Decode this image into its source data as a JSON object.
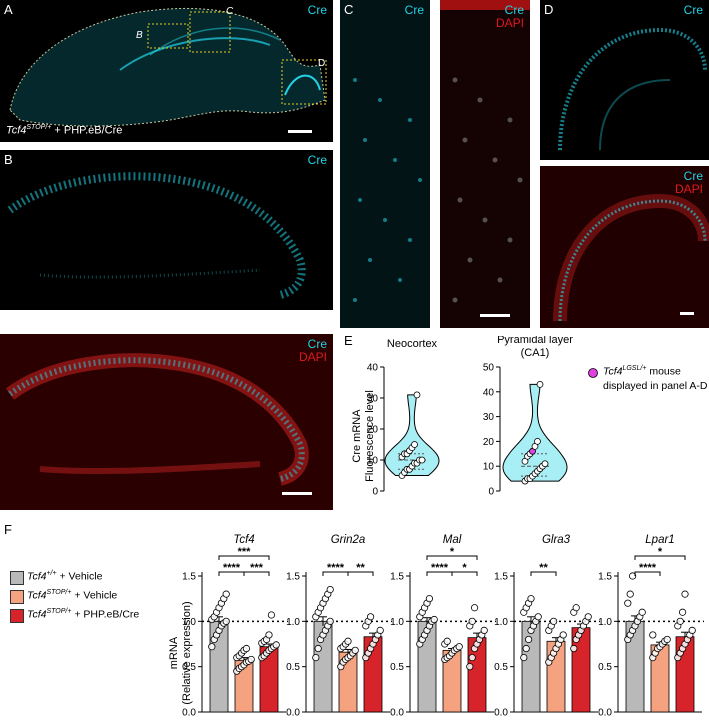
{
  "panels": {
    "A": {
      "letter": "A",
      "channel": "Cre",
      "region_b": "B",
      "region_c": "C",
      "region_d": "D",
      "caption_gene": "Tcf4",
      "caption_sup": "STOP/+",
      "caption_rest": " + PHP.eB/Cre"
    },
    "B": {
      "letter": "B",
      "top_channel": "Cre",
      "bottom_channel_1": "Cre",
      "bottom_channel_2": "DAPI"
    },
    "C": {
      "letter": "C",
      "left_channel": "Cre",
      "right_channel_1": "Cre",
      "right_channel_2": "DAPI"
    },
    "D": {
      "letter": "D",
      "top_channel": "Cre",
      "bottom_channel_1": "Cre",
      "bottom_channel_2": "DAPI"
    },
    "E": {
      "letter": "E",
      "ylabel_line1": "Cre mRNA",
      "ylabel_line2": "Fluorescence level",
      "legend_gene": "Tcf4",
      "legend_sup": "LGSL/+",
      "legend_rest": " mouse",
      "legend_line2": "displayed in panel A-D"
    },
    "F": {
      "letter": "F",
      "ylabel_line1": "mRNA",
      "ylabel_line2": "(Relative expression)"
    }
  },
  "colors": {
    "cre": "#22d3e6",
    "dapi": "#e0191f",
    "vehicle_wt": "#b9b9b9",
    "vehicle_stop": "#f4a27f",
    "phpeb": "#d7242a",
    "highlight": "#e040e0",
    "violin_fill": "#a8eef5"
  },
  "legend": [
    {
      "gene": "Tcf4",
      "sup": "+/+",
      "rest": " + Vehicle",
      "color": "#b9b9b9"
    },
    {
      "gene": "Tcf4",
      "sup": "STOP/+",
      "rest": " + Vehicle",
      "color": "#f4a27f"
    },
    {
      "gene": "Tcf4",
      "sup": "STOP/+",
      "rest": " + PHP.eB/Cre",
      "color": "#d7242a"
    }
  ],
  "chart_data": [
    {
      "type": "violin",
      "title": "Neocortex",
      "ylabel": "Cre mRNA Fluorescence level",
      "ylim": [
        0,
        40
      ],
      "yticks": [
        "0",
        "10",
        "20",
        "30",
        "40"
      ],
      "points": [
        5,
        6,
        7,
        7,
        8,
        9,
        9,
        10,
        10,
        11,
        12,
        12,
        13,
        14,
        15,
        31
      ]
    },
    {
      "type": "violin",
      "title": "Pyramidal layer",
      "subtitle": "(CA1)",
      "ylim": [
        0,
        50
      ],
      "yticks": [
        "0",
        "10",
        "20",
        "30",
        "40",
        "50"
      ],
      "points": [
        4,
        5,
        5,
        6,
        7,
        8,
        9,
        10,
        11,
        12,
        14,
        15,
        16,
        18,
        20,
        43
      ],
      "highlight_point": 16
    },
    {
      "type": "bar",
      "gene": "Tcf4",
      "ylim": [
        0,
        1.5
      ],
      "yticks": [
        "0.0",
        "0.5",
        "1.0",
        "1.5"
      ],
      "categories": [
        "Tcf4+/+ + Vehicle",
        "Tcf4STOP/+ + Vehicle",
        "Tcf4STOP/+ + PHP.eB/Cre"
      ],
      "values": [
        1.0,
        0.57,
        0.72
      ],
      "errors": [
        0.05,
        0.03,
        0.03
      ],
      "points": [
        [
          0.72,
          0.8,
          0.85,
          0.9,
          0.95,
          0.98,
          1.0,
          1.02,
          1.05,
          1.1,
          1.15,
          1.2,
          1.25,
          1.3
        ],
        [
          0.45,
          0.48,
          0.5,
          0.52,
          0.55,
          0.56,
          0.58,
          0.6,
          0.62,
          0.65,
          0.68,
          0.7
        ],
        [
          0.6,
          0.62,
          0.65,
          0.68,
          0.7,
          0.72,
          0.74,
          0.76,
          0.78,
          0.8,
          0.85,
          1.07
        ]
      ],
      "sig": [
        {
          "from": 0,
          "to": 1,
          "label": "****",
          "level": 0
        },
        {
          "from": 1,
          "to": 2,
          "label": "***",
          "level": 0
        },
        {
          "from": 0,
          "to": 2,
          "label": "***",
          "level": 1
        }
      ]
    },
    {
      "type": "bar",
      "gene": "Grin2a",
      "ylim": [
        0,
        1.5
      ],
      "yticks": [
        "0.0",
        "0.5",
        "1.0",
        "1.5"
      ],
      "categories": [
        "Tcf4+/+ + Vehicle",
        "Tcf4STOP/+ + Vehicle",
        "Tcf4STOP/+ + PHP.eB/Cre"
      ],
      "values": [
        1.0,
        0.66,
        0.83
      ],
      "errors": [
        0.05,
        0.03,
        0.04
      ],
      "points": [
        [
          0.6,
          0.7,
          0.8,
          0.85,
          0.9,
          0.95,
          1.0,
          1.05,
          1.1,
          1.15,
          1.2,
          1.25,
          1.3,
          1.35
        ],
        [
          0.5,
          0.55,
          0.58,
          0.6,
          0.62,
          0.65,
          0.68,
          0.7,
          0.72,
          0.75,
          0.78
        ],
        [
          0.6,
          0.65,
          0.7,
          0.75,
          0.8,
          0.85,
          0.9,
          0.95,
          1.0,
          1.05
        ]
      ],
      "sig": [
        {
          "from": 0,
          "to": 1,
          "label": "****",
          "level": 0
        },
        {
          "from": 1,
          "to": 2,
          "label": "**",
          "level": 0
        }
      ]
    },
    {
      "type": "bar",
      "gene": "Mal",
      "ylim": [
        0,
        1.5
      ],
      "yticks": [
        "0.0",
        "0.5",
        "1.0",
        "1.5"
      ],
      "categories": [
        "Tcf4+/+ + Vehicle",
        "Tcf4STOP/+ + Vehicle",
        "Tcf4STOP/+ + PHP.eB/Cre"
      ],
      "values": [
        1.0,
        0.68,
        0.82
      ],
      "errors": [
        0.04,
        0.02,
        0.05
      ],
      "points": [
        [
          0.75,
          0.8,
          0.85,
          0.9,
          0.95,
          1.0,
          1.02,
          1.05,
          1.1,
          1.15,
          1.2,
          1.25
        ],
        [
          0.58,
          0.6,
          0.62,
          0.65,
          0.68,
          0.7,
          0.72,
          0.75,
          0.78
        ],
        [
          0.5,
          0.6,
          0.7,
          0.75,
          0.8,
          0.85,
          0.9,
          0.95,
          1.0,
          1.15
        ]
      ],
      "sig": [
        {
          "from": 0,
          "to": 1,
          "label": "****",
          "level": 0
        },
        {
          "from": 1,
          "to": 2,
          "label": "*",
          "level": 0
        },
        {
          "from": 0,
          "to": 2,
          "label": "*",
          "level": 1
        }
      ]
    },
    {
      "type": "bar",
      "gene": "Glra3",
      "ylim": [
        0,
        1.5
      ],
      "yticks": [
        "0.0",
        "0.5",
        "1.0",
        "1.5"
      ],
      "categories": [
        "Tcf4+/+ + Vehicle",
        "Tcf4STOP/+ + Vehicle",
        "Tcf4STOP/+ + PHP.eB/Cre"
      ],
      "values": [
        1.0,
        0.78,
        0.93
      ],
      "errors": [
        0.05,
        0.04,
        0.04
      ],
      "points": [
        [
          0.6,
          0.7,
          0.8,
          0.9,
          0.95,
          1.0,
          1.05,
          1.1,
          1.15,
          1.2,
          1.25
        ],
        [
          0.55,
          0.6,
          0.65,
          0.7,
          0.75,
          0.8,
          0.85,
          0.9,
          0.95,
          1.0
        ],
        [
          0.7,
          0.8,
          0.85,
          0.9,
          0.95,
          1.0,
          1.05,
          1.1,
          1.15
        ]
      ],
      "sig": [
        {
          "from": 0,
          "to": 1,
          "label": "**",
          "level": 0
        }
      ]
    },
    {
      "type": "bar",
      "gene": "Lpar1",
      "ylim": [
        0,
        1.5
      ],
      "yticks": [
        "0.0",
        "0.5",
        "1.0",
        "1.5"
      ],
      "categories": [
        "Tcf4+/+ + Vehicle",
        "Tcf4STOP/+ + Vehicle",
        "Tcf4STOP/+ + PHP.eB/Cre"
      ],
      "values": [
        1.0,
        0.74,
        0.83
      ],
      "errors": [
        0.06,
        0.03,
        0.05
      ],
      "points": [
        [
          0.8,
          0.85,
          0.9,
          0.95,
          1.0,
          1.05,
          1.1,
          1.2,
          1.3,
          1.5
        ],
        [
          0.6,
          0.65,
          0.7,
          0.72,
          0.75,
          0.78,
          0.8,
          0.85
        ],
        [
          0.6,
          0.65,
          0.7,
          0.75,
          0.8,
          0.85,
          0.9,
          0.95,
          1.0,
          1.1,
          1.3
        ]
      ],
      "sig": [
        {
          "from": 0,
          "to": 1,
          "label": "****",
          "level": 0
        },
        {
          "from": 0,
          "to": 2,
          "label": "*",
          "level": 1
        }
      ]
    }
  ]
}
